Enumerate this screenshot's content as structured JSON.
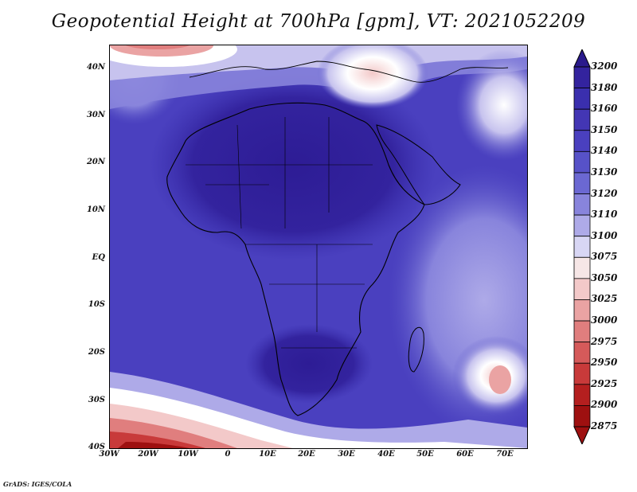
{
  "title": "Geopotential Height at 700hPa [gpm], VT: 2021052209",
  "footer": "GrADS: IGES/COLA",
  "axes": {
    "lat_labels": [
      "40N",
      "30N",
      "20N",
      "10N",
      "EQ",
      "10S",
      "20S",
      "30S",
      "40S"
    ],
    "lon_labels": [
      "30W",
      "20W",
      "10W",
      "0",
      "10E",
      "20E",
      "30E",
      "40E",
      "50E",
      "60E",
      "70E"
    ]
  },
  "colorbar": {
    "levels": [
      "3200",
      "3180",
      "3160",
      "3150",
      "3140",
      "3130",
      "3120",
      "3110",
      "3100",
      "3075",
      "3050",
      "3025",
      "3000",
      "2975",
      "2950",
      "2925",
      "2900",
      "2875"
    ],
    "colors": [
      "#2a1a8c",
      "#33239e",
      "#3a2fae",
      "#4336b4",
      "#4a40bf",
      "#5752c8",
      "#6b68d2",
      "#8884dc",
      "#aeaae8",
      "#d8d6f4",
      "#f6e6e6",
      "#f3c9c9",
      "#eaa3a3",
      "#e07e7e",
      "#d55a5a",
      "#c83a3a",
      "#b41f1f",
      "#9e1010"
    ]
  }
}
